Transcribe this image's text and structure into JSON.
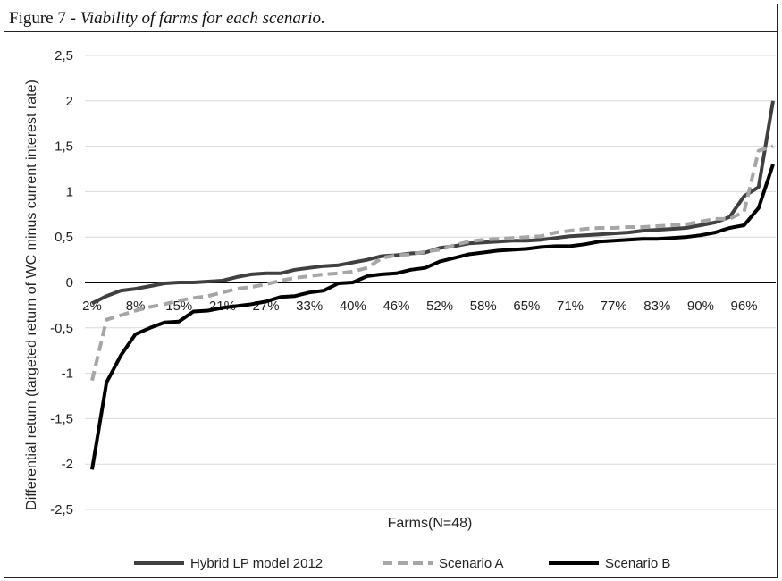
{
  "figure": {
    "label": "Figure 7 - ",
    "description": "Viability of farms for each scenario."
  },
  "chart_data": {
    "type": "line",
    "xlabel": "Farms(N=48)",
    "ylabel": "Differential return (targeted return of WC minus current interest rate)",
    "ylim": [
      -2.5,
      2.5
    ],
    "y_ticks": [
      "2,5",
      "2",
      "1,5",
      "1",
      "0,5",
      "0",
      "-0,5",
      "-1",
      "-1,5",
      "-2",
      "-2,5"
    ],
    "x_tick_labels": [
      "2%",
      "8%",
      "15%",
      "21%",
      "27%",
      "33%",
      "40%",
      "46%",
      "52%",
      "58%",
      "65%",
      "71%",
      "77%",
      "83%",
      "90%",
      "96%"
    ],
    "grid": true,
    "legend_position": "bottom",
    "colors": {
      "hybrid": "#404040",
      "scenario_a": "#a6a6a6",
      "scenario_b": "#000000"
    },
    "series": [
      {
        "name": "Hybrid LP model 2012",
        "values": [
          -0.23,
          -0.15,
          -0.09,
          -0.07,
          -0.04,
          -0.01,
          0.0,
          0.0,
          0.01,
          0.02,
          0.06,
          0.09,
          0.1,
          0.1,
          0.14,
          0.16,
          0.18,
          0.19,
          0.22,
          0.25,
          0.29,
          0.3,
          0.32,
          0.33,
          0.38,
          0.4,
          0.43,
          0.44,
          0.45,
          0.46,
          0.46,
          0.47,
          0.49,
          0.51,
          0.52,
          0.53,
          0.54,
          0.55,
          0.57,
          0.58,
          0.59,
          0.6,
          0.63,
          0.66,
          0.72,
          0.95,
          1.05,
          2.0
        ]
      },
      {
        "name": "Scenario A",
        "values": [
          -1.08,
          -0.41,
          -0.36,
          -0.31,
          -0.27,
          -0.24,
          -0.2,
          -0.17,
          -0.15,
          -0.11,
          -0.07,
          -0.05,
          -0.02,
          0.02,
          0.05,
          0.07,
          0.09,
          0.1,
          0.12,
          0.16,
          0.27,
          0.3,
          0.31,
          0.34,
          0.36,
          0.41,
          0.45,
          0.47,
          0.48,
          0.49,
          0.5,
          0.51,
          0.55,
          0.57,
          0.59,
          0.6,
          0.6,
          0.61,
          0.61,
          0.62,
          0.63,
          0.64,
          0.67,
          0.7,
          0.7,
          0.78,
          1.45,
          1.5
        ]
      },
      {
        "name": "Scenario B",
        "values": [
          -2.06,
          -1.1,
          -0.8,
          -0.57,
          -0.5,
          -0.44,
          -0.43,
          -0.32,
          -0.31,
          -0.28,
          -0.26,
          -0.24,
          -0.21,
          -0.16,
          -0.15,
          -0.11,
          -0.09,
          -0.01,
          0.0,
          0.07,
          0.09,
          0.1,
          0.14,
          0.16,
          0.23,
          0.27,
          0.31,
          0.33,
          0.35,
          0.36,
          0.37,
          0.39,
          0.4,
          0.4,
          0.42,
          0.45,
          0.46,
          0.47,
          0.48,
          0.48,
          0.49,
          0.5,
          0.52,
          0.55,
          0.6,
          0.63,
          0.82,
          1.3
        ]
      }
    ]
  }
}
